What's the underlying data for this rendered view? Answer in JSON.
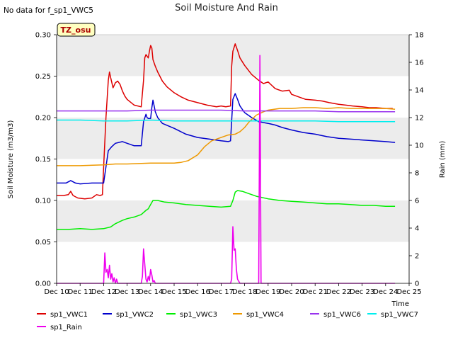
{
  "chart_data": {
    "type": "line",
    "title": "Soil Moisture And Rain",
    "nodata_note": "No data for f_sp1_VWC5",
    "station_badge": "TZ_osu",
    "xlabel": "Time",
    "ylabel_left": "Soil Moisture (m3/m3)",
    "ylabel_right": "Rain (mm)",
    "xlim": [
      10,
      25
    ],
    "ylim_left": [
      0.0,
      0.3
    ],
    "ylim_right": [
      0,
      18
    ],
    "x_ticks": [
      {
        "v": 10,
        "label": "Dec 10"
      },
      {
        "v": 11,
        "label": "Dec 11"
      },
      {
        "v": 12,
        "label": "Dec 12"
      },
      {
        "v": 13,
        "label": "Dec 13"
      },
      {
        "v": 14,
        "label": "Dec 14"
      },
      {
        "v": 15,
        "label": "Dec 15"
      },
      {
        "v": 16,
        "label": "Dec 16"
      },
      {
        "v": 17,
        "label": "Dec 17"
      },
      {
        "v": 18,
        "label": "Dec 18"
      },
      {
        "v": 19,
        "label": "Dec 19"
      },
      {
        "v": 20,
        "label": "Dec 20"
      },
      {
        "v": 21,
        "label": "Dec 21"
      },
      {
        "v": 22,
        "label": "Dec 22"
      },
      {
        "v": 23,
        "label": "Dec 23"
      },
      {
        "v": 24,
        "label": "Dec 24"
      },
      {
        "v": 25,
        "label": "Dec 25"
      }
    ],
    "y_ticks_left": [
      "0.00",
      "0.05",
      "0.10",
      "0.15",
      "0.20",
      "0.25",
      "0.30"
    ],
    "y_ticks_right": [
      "0",
      "2",
      "4",
      "6",
      "8",
      "10",
      "12",
      "14",
      "16",
      "18"
    ],
    "grid": "horizontal bands",
    "legend_placement": "bottom",
    "series": [
      {
        "name": "sp1_VWC1",
        "color": "#dd0000",
        "axis": "left",
        "x": [
          10.0,
          10.3,
          10.5,
          10.6,
          10.7,
          10.9,
          11.2,
          11.5,
          11.7,
          11.85,
          11.95,
          12.0,
          12.1,
          12.2,
          12.25,
          12.3,
          12.4,
          12.5,
          12.6,
          12.7,
          12.8,
          12.9,
          13.0,
          13.3,
          13.6,
          13.7,
          13.75,
          13.8,
          13.9,
          13.95,
          14.0,
          14.05,
          14.1,
          14.2,
          14.3,
          14.5,
          14.7,
          15.0,
          15.3,
          15.6,
          16.0,
          16.4,
          16.8,
          17.0,
          17.2,
          17.4,
          17.45,
          17.5,
          17.6,
          17.7,
          17.8,
          18.0,
          18.3,
          18.6,
          18.8,
          19.0,
          19.3,
          19.6,
          19.9,
          20.0,
          20.3,
          20.6,
          21.0,
          21.3,
          21.6,
          22.0,
          22.3,
          22.6,
          23.0,
          23.3,
          23.6,
          24.0,
          24.3
        ],
        "y": [
          0.106,
          0.106,
          0.107,
          0.111,
          0.106,
          0.103,
          0.102,
          0.103,
          0.107,
          0.106,
          0.107,
          0.14,
          0.2,
          0.245,
          0.255,
          0.248,
          0.236,
          0.242,
          0.244,
          0.24,
          0.232,
          0.226,
          0.222,
          0.215,
          0.213,
          0.245,
          0.272,
          0.276,
          0.272,
          0.28,
          0.287,
          0.284,
          0.27,
          0.262,
          0.255,
          0.244,
          0.237,
          0.23,
          0.225,
          0.221,
          0.218,
          0.215,
          0.213,
          0.214,
          0.213,
          0.214,
          0.262,
          0.28,
          0.289,
          0.281,
          0.272,
          0.263,
          0.252,
          0.245,
          0.241,
          0.243,
          0.235,
          0.232,
          0.233,
          0.228,
          0.225,
          0.222,
          0.221,
          0.22,
          0.218,
          0.216,
          0.215,
          0.214,
          0.213,
          0.212,
          0.212,
          0.211,
          0.211
        ]
      },
      {
        "name": "sp1_VWC2",
        "color": "#0000cc",
        "axis": "left",
        "x": [
          10.0,
          10.4,
          10.6,
          10.8,
          11.0,
          11.5,
          11.9,
          12.0,
          12.2,
          12.35,
          12.5,
          12.8,
          13.0,
          13.3,
          13.6,
          13.7,
          13.8,
          13.85,
          13.9,
          14.0,
          14.05,
          14.1,
          14.15,
          14.2,
          14.3,
          14.5,
          15.0,
          15.5,
          16.0,
          16.5,
          17.0,
          17.3,
          17.4,
          17.5,
          17.6,
          17.7,
          17.8,
          18.0,
          18.3,
          18.6,
          19.0,
          19.3,
          19.6,
          20.0,
          20.5,
          21.0,
          21.5,
          22.0,
          22.5,
          23.0,
          23.5,
          24.0,
          24.4
        ],
        "y": [
          0.121,
          0.121,
          0.124,
          0.121,
          0.12,
          0.121,
          0.121,
          0.121,
          0.16,
          0.165,
          0.169,
          0.171,
          0.169,
          0.166,
          0.166,
          0.195,
          0.204,
          0.2,
          0.199,
          0.199,
          0.212,
          0.221,
          0.214,
          0.207,
          0.2,
          0.193,
          0.187,
          0.18,
          0.176,
          0.174,
          0.172,
          0.171,
          0.172,
          0.222,
          0.229,
          0.222,
          0.214,
          0.206,
          0.2,
          0.195,
          0.193,
          0.191,
          0.188,
          0.185,
          0.182,
          0.18,
          0.177,
          0.175,
          0.174,
          0.173,
          0.172,
          0.171,
          0.17
        ]
      },
      {
        "name": "sp1_VWC3",
        "color": "#00ee00",
        "axis": "left",
        "x": [
          10.0,
          10.5,
          11.0,
          11.5,
          12.0,
          12.3,
          12.5,
          12.8,
          13.0,
          13.3,
          13.6,
          13.8,
          13.9,
          14.0,
          14.1,
          14.3,
          14.6,
          15.0,
          15.5,
          16.0,
          16.5,
          17.0,
          17.4,
          17.5,
          17.6,
          17.7,
          17.9,
          18.2,
          18.5,
          19.0,
          19.5,
          20.0,
          20.5,
          21.0,
          21.5,
          22.0,
          22.5,
          23.0,
          23.5,
          24.0,
          24.4
        ],
        "y": [
          0.065,
          0.065,
          0.066,
          0.065,
          0.066,
          0.068,
          0.072,
          0.076,
          0.078,
          0.08,
          0.083,
          0.088,
          0.09,
          0.095,
          0.1,
          0.1,
          0.098,
          0.097,
          0.095,
          0.094,
          0.093,
          0.092,
          0.093,
          0.1,
          0.11,
          0.112,
          0.111,
          0.108,
          0.105,
          0.102,
          0.1,
          0.099,
          0.098,
          0.097,
          0.096,
          0.096,
          0.095,
          0.094,
          0.094,
          0.093,
          0.093
        ]
      },
      {
        "name": "sp1_VWC4",
        "color": "#ee9900",
        "axis": "left",
        "x": [
          10.0,
          11.0,
          12.0,
          12.5,
          13.0,
          14.0,
          14.5,
          15.0,
          15.3,
          15.6,
          16.0,
          16.3,
          16.6,
          17.0,
          17.3,
          17.6,
          17.8,
          18.0,
          18.2,
          18.5,
          18.8,
          19.0,
          19.5,
          20.0,
          20.5,
          21.0,
          21.5,
          22.0,
          22.5,
          23.0,
          23.5,
          24.0,
          24.4
        ],
        "y": [
          0.142,
          0.142,
          0.143,
          0.144,
          0.144,
          0.145,
          0.145,
          0.145,
          0.146,
          0.148,
          0.155,
          0.165,
          0.172,
          0.176,
          0.179,
          0.18,
          0.183,
          0.188,
          0.195,
          0.203,
          0.207,
          0.209,
          0.211,
          0.211,
          0.212,
          0.212,
          0.211,
          0.212,
          0.211,
          0.211,
          0.211,
          0.211,
          0.21
        ]
      },
      {
        "name": "sp1_VWC6",
        "color": "#9933ee",
        "axis": "left",
        "x": [
          10.0,
          11.0,
          12.0,
          13.0,
          14.0,
          15.0,
          16.0,
          17.0,
          18.0,
          19.0,
          20.0,
          21.0,
          22.0,
          23.0,
          24.0,
          24.4
        ],
        "y": [
          0.208,
          0.208,
          0.208,
          0.208,
          0.209,
          0.209,
          0.209,
          0.209,
          0.208,
          0.208,
          0.208,
          0.208,
          0.207,
          0.207,
          0.207,
          0.207
        ]
      },
      {
        "name": "sp1_VWC7",
        "color": "#00eeee",
        "axis": "left",
        "x": [
          10.0,
          11.0,
          12.0,
          13.0,
          14.0,
          15.0,
          16.0,
          17.0,
          18.0,
          19.0,
          20.0,
          21.0,
          22.0,
          23.0,
          24.0,
          24.4
        ],
        "y": [
          0.197,
          0.197,
          0.196,
          0.196,
          0.197,
          0.196,
          0.196,
          0.196,
          0.196,
          0.196,
          0.196,
          0.196,
          0.195,
          0.195,
          0.195,
          0.195
        ]
      },
      {
        "name": "sp1_Rain",
        "color": "#ee00ee",
        "axis": "right",
        "x": [
          10.0,
          11.9,
          12.0,
          12.05,
          12.1,
          12.15,
          12.2,
          12.25,
          12.3,
          12.35,
          12.4,
          12.45,
          12.5,
          12.55,
          12.6,
          12.7,
          13.6,
          13.65,
          13.7,
          13.75,
          13.8,
          13.85,
          13.9,
          13.95,
          14.0,
          14.05,
          14.1,
          14.15,
          14.2,
          14.3,
          17.4,
          17.45,
          17.5,
          17.55,
          17.6,
          17.65,
          17.7,
          17.8,
          18.6,
          18.65,
          18.7,
          18.75,
          24.4
        ],
        "y": [
          0,
          0,
          0,
          2.2,
          0.8,
          1.0,
          0.4,
          1.3,
          0.3,
          0.7,
          0.1,
          0.4,
          0,
          0.3,
          0,
          0,
          0,
          0.5,
          2.5,
          1.4,
          0.3,
          0.1,
          0.5,
          0.2,
          1.0,
          0.6,
          0.1,
          0.2,
          0,
          0,
          0,
          0.3,
          4.1,
          2.4,
          2.5,
          1.0,
          0.3,
          0,
          0,
          16.5,
          0,
          0,
          0
        ]
      }
    ]
  }
}
